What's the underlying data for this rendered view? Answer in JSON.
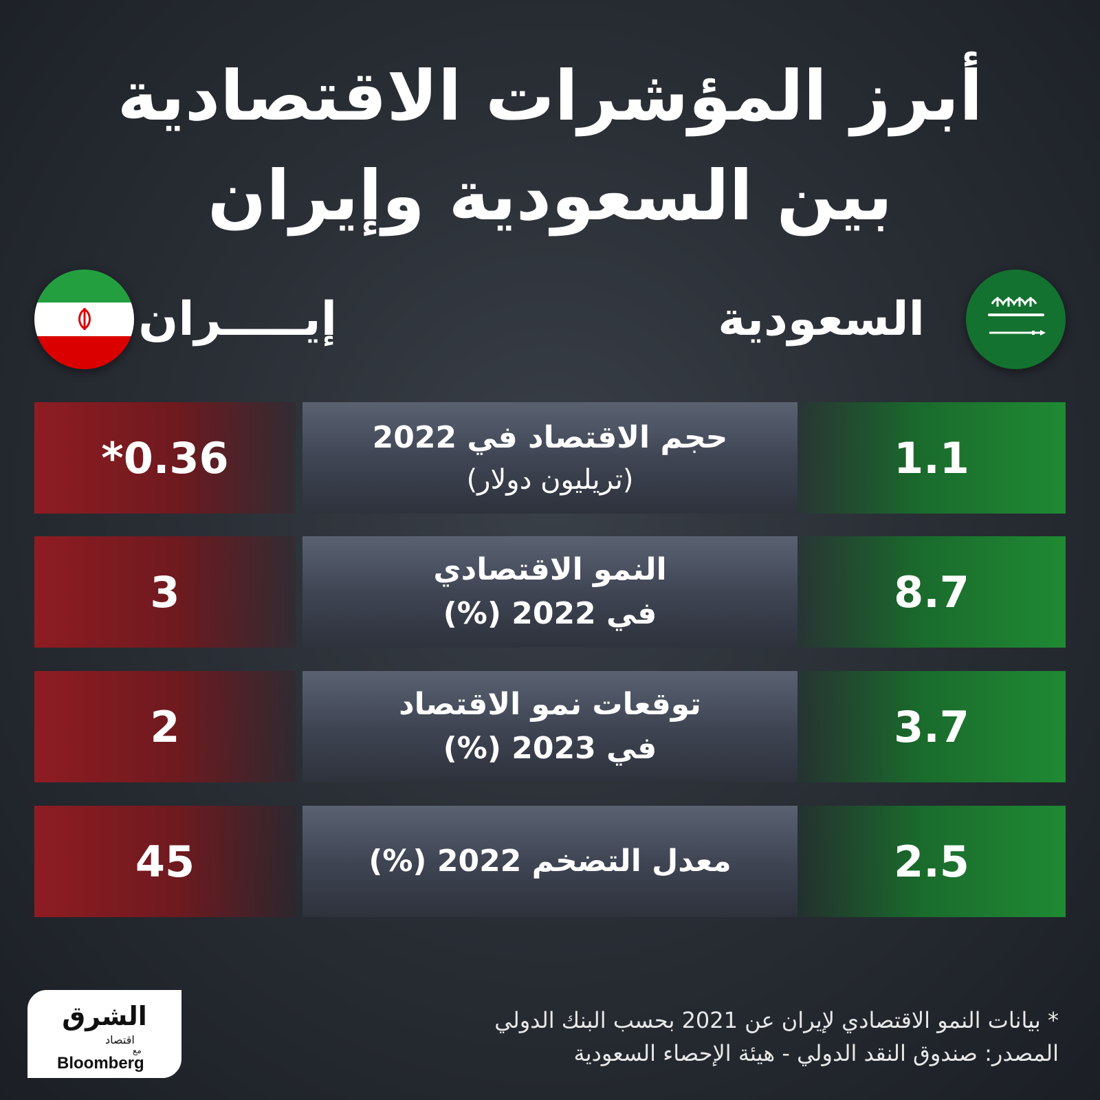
{
  "title": {
    "line1": "أبرز المؤشرات الاقتصادية",
    "line2": "بين السعودية وإيران"
  },
  "countries": {
    "saudi": "السعودية",
    "iran": "إيـــــران"
  },
  "rows": [
    {
      "label": "حجم الاقتصاد في 2022",
      "sublabel": "(تريليون دولار)",
      "saudi": "1.1",
      "iran": "*0.36"
    },
    {
      "label": "النمو الاقتصادي",
      "sublabel": "في 2022 (%)",
      "saudi": "8.7",
      "iran": "3"
    },
    {
      "label": "توقعات نمو الاقتصاد",
      "sublabel": "في 2023 (%)",
      "saudi": "3.7",
      "iran": "2"
    },
    {
      "label": "معدل التضخم 2022 (%)",
      "sublabel": "",
      "saudi": "2.5",
      "iran": "45"
    }
  ],
  "footnote": {
    "note": "* بيانات النمو الاقتصادي لإيران عن 2021 بحسب البنك الدولي",
    "source": "المصدر: صندوق النقد الدولي - هيئة الإحصاء السعودية"
  },
  "logo": {
    "main": "الشرق",
    "sub": "اقتصاد",
    "with": "مع",
    "bloomberg": "Bloomberg"
  },
  "flags": {
    "saudi_emblem_text": "لا إله إلا الله محمد رسول الله"
  },
  "colors": {
    "saudi_green": "#1f8a33",
    "iran_red": "#8e1c22",
    "middle_gray": "#4a505e"
  }
}
